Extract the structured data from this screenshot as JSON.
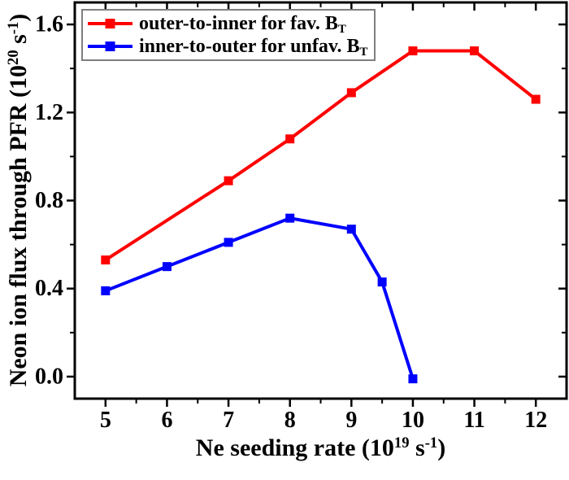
{
  "figure": {
    "background": "#ffffff",
    "axis_color": "#000000",
    "text_color": "#000000"
  },
  "chart_data": {
    "type": "line",
    "title": "",
    "xlabel": "Ne seeding rate (10^19 s^-1)",
    "ylabel": "Neon ion flux through PFR (10^20 s^-1)",
    "xlabel_segments": [
      {
        "t": "Ne seeding rate (10"
      },
      {
        "t": "19",
        "sup": true
      },
      {
        "t": " s"
      },
      {
        "t": "-1",
        "sup": true
      },
      {
        "t": ")"
      }
    ],
    "ylabel_segments": [
      {
        "t": "Neon ion flux through PFR (10"
      },
      {
        "t": "20",
        "sup": true
      },
      {
        "t": " s"
      },
      {
        "t": "-1",
        "sup": true
      },
      {
        "t": ")"
      }
    ],
    "xlim": [
      4.5,
      12.5
    ],
    "ylim": [
      -0.1,
      1.7
    ],
    "x_major_ticks": [
      5,
      6,
      7,
      8,
      9,
      10,
      11,
      12
    ],
    "x_tick_labels": [
      "5",
      "6",
      "7",
      "8",
      "9",
      "10",
      "11",
      "12"
    ],
    "x_minor_step": 0.5,
    "y_major_ticks": [
      0.0,
      0.4,
      0.8,
      1.2,
      1.6
    ],
    "y_tick_labels": [
      "0.0",
      "0.4",
      "0.8",
      "1.2",
      "1.6"
    ],
    "y_minor_step": 0.2,
    "grid": false,
    "legend": {
      "position": "top-left",
      "border_color": "#7f7f7f"
    },
    "series": [
      {
        "id": "fav-bt",
        "name": "outer-to-inner for fav. B_T",
        "name_segments": [
          {
            "t": "outer-to-inner for fav. B"
          },
          {
            "t": "T",
            "sub": true
          }
        ],
        "color": "#ff0000",
        "marker": "square",
        "x": [
          5,
          7,
          8,
          9,
          10,
          11,
          12
        ],
        "y": [
          0.53,
          0.89,
          1.08,
          1.29,
          1.48,
          1.48,
          1.26
        ]
      },
      {
        "id": "unfav-bt",
        "name": "inner-to-outer for unfav. B_T",
        "name_segments": [
          {
            "t": "inner-to-outer for unfav. B"
          },
          {
            "t": "T",
            "sub": true
          }
        ],
        "color": "#0000ff",
        "marker": "square",
        "x": [
          5,
          6,
          7,
          8,
          9,
          9.5,
          10
        ],
        "y": [
          0.39,
          0.5,
          0.61,
          0.72,
          0.67,
          0.43,
          -0.01
        ]
      }
    ]
  }
}
